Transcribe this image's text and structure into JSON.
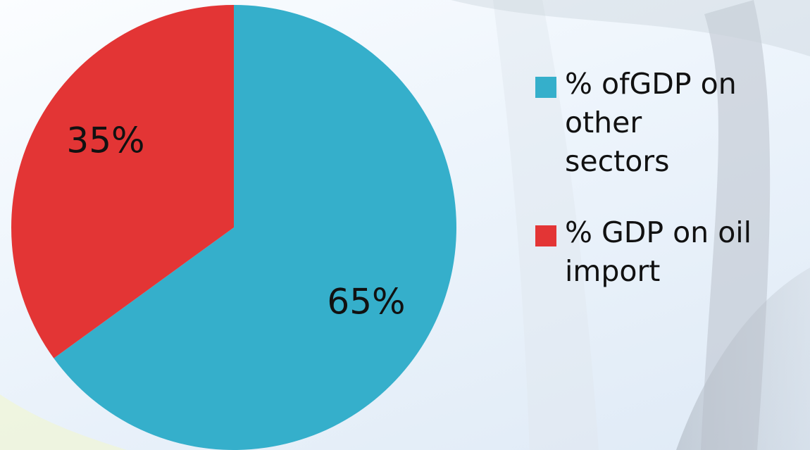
{
  "chart_data": {
    "type": "pie",
    "title": "",
    "slices": [
      {
        "label": "% ofGDP on\nother\nsectors",
        "value": 65,
        "data_label": "65%",
        "color": "#35AFCB"
      },
      {
        "label": "% GDP on oil\nimport",
        "value": 35,
        "data_label": "35%",
        "color": "#E33535"
      }
    ],
    "start_angle_deg": 0,
    "direction": "clockwise",
    "legend_position": "right"
  }
}
